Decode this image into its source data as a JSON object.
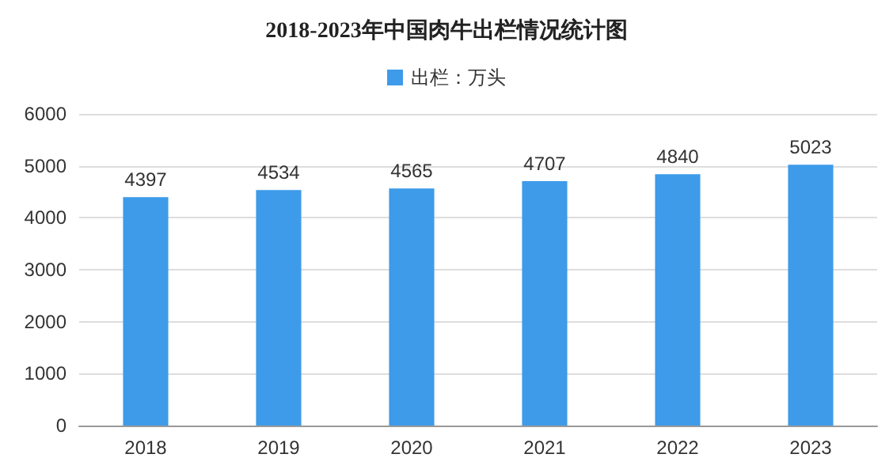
{
  "chart_data": {
    "type": "bar",
    "title": "2018-2023年中国肉牛出栏情况统计图",
    "categories": [
      "2018",
      "2019",
      "2020",
      "2021",
      "2022",
      "2023"
    ],
    "series": [
      {
        "name": "出栏：万头",
        "color": "#3d9be9",
        "values": [
          4397,
          4534,
          4565,
          4707,
          4840,
          5023
        ]
      }
    ],
    "ylim": [
      0,
      6000
    ],
    "yticks": [
      0,
      1000,
      2000,
      3000,
      4000,
      5000,
      6000
    ],
    "grid": "y",
    "legend": "top",
    "data_labels": true
  }
}
